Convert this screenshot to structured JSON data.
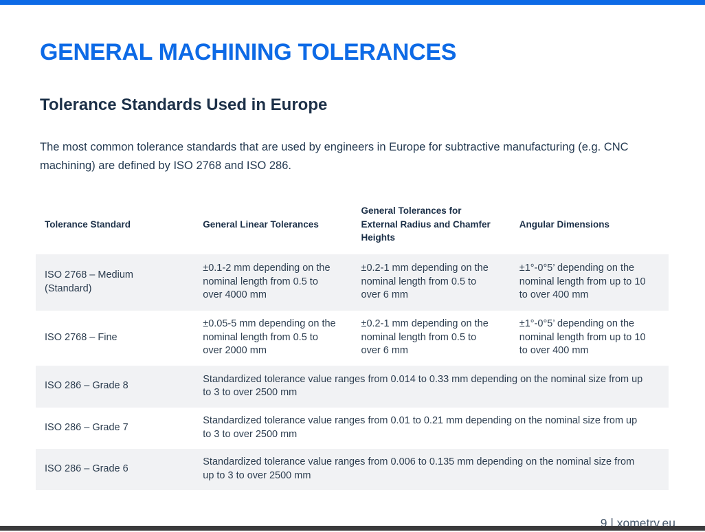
{
  "page": {
    "title": "GENERAL MACHINING TOLERANCES",
    "subtitle": "Tolerance Standards Used in Europe",
    "intro": "The most common tolerance standards that are used by engineers in Europe for subtractive manufacturing (e.g. CNC machining) are defined by ISO 2768 and ISO 286.",
    "footer_text": "9 | xometry.eu",
    "page_number": "9",
    "site": "xometry.eu"
  },
  "colors": {
    "accent_blue": "#0d6ae6",
    "heading_navy": "#1c3048",
    "body_text": "#2d3e50",
    "row_alt_background": "#f1f2f4",
    "footer_text": "#46586c",
    "bottom_bar": "#3a3a3c"
  },
  "table": {
    "headers": [
      "Tolerance Standard",
      "General Linear Tolerances",
      "General Tolerances for External Radius and Chamfer Heights",
      "Angular Dimensions"
    ],
    "rows": [
      {
        "standard": "ISO 2768 – Medium (Standard)",
        "linear": "±0.1-2 mm depending on the nominal length from 0.5 to over 4000 mm",
        "radius_chamfer": "±0.2-1 mm depending on the nominal length from 0.5 to over 6 mm",
        "angular": "±1°-0°5’ depending on the nominal length from up to 10 to over 400 mm"
      },
      {
        "standard": "ISO 2768 – Fine",
        "linear": "±0.05-5 mm depending on the nominal length from 0.5 to over 2000 mm",
        "radius_chamfer": "±0.2-1 mm depending on the nominal length from 0.5 to over 6 mm",
        "angular": "±1°-0°5’ depending on the nominal length from up to 10 to over 400 mm"
      },
      {
        "standard": "ISO 286 – Grade 8",
        "description": "Standardized tolerance value ranges from 0.014 to 0.33 mm depending on the nominal size from up to 3 to over 2500 mm"
      },
      {
        "standard": "ISO 286 – Grade 7",
        "description": "Standardized tolerance value ranges from 0.01 to 0.21 mm depending on the nominal size from up to 3 to over 2500 mm"
      },
      {
        "standard": "ISO 286 – Grade 6",
        "description": "Standardized tolerance value ranges from 0.006 to 0.135 mm depending on the nominal size from up to 3 to over 2500 mm"
      }
    ]
  }
}
